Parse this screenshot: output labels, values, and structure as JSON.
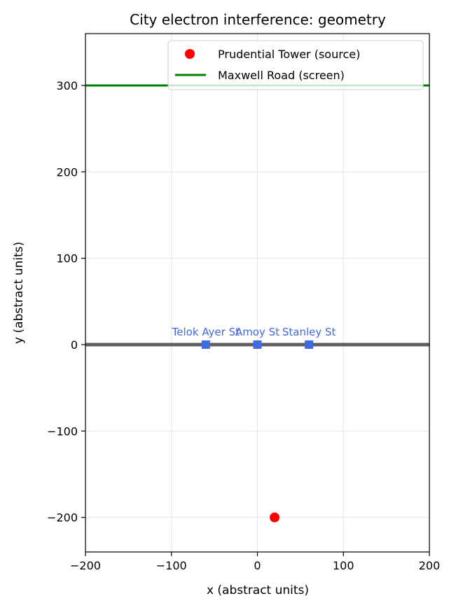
{
  "chart_data": {
    "type": "scatter",
    "title": "City electron interference: geometry",
    "xlabel": "x (abstract units)",
    "ylabel": "y (abstract units)",
    "xlim": [
      -200,
      200
    ],
    "ylim": [
      -240,
      360
    ],
    "x_ticks": [
      -200,
      -100,
      0,
      100,
      200
    ],
    "x_tick_labels": [
      "−200",
      "−100",
      "0",
      "100",
      "200"
    ],
    "y_ticks": [
      -200,
      -100,
      0,
      100,
      200,
      300
    ],
    "y_tick_labels": [
      "−200",
      "−100",
      "0",
      "100",
      "200",
      "300"
    ],
    "grid": true,
    "legend_position": "top-right",
    "barrier": {
      "y": 0,
      "color": "#606060"
    },
    "screen": {
      "name": "Maxwell Road (screen)",
      "y": 300,
      "color": "#008000"
    },
    "source": {
      "name": "Prudential Tower (source)",
      "x": 20,
      "y": -200,
      "color": "#ff0000"
    },
    "gaps": {
      "color": "#4169e1",
      "points": [
        {
          "label": "Telok Ayer St",
          "x": -60,
          "y": 0
        },
        {
          "label": "Amoy St",
          "x": 0,
          "y": 0
        },
        {
          "label": "Stanley St",
          "x": 60,
          "y": 0
        }
      ]
    }
  }
}
